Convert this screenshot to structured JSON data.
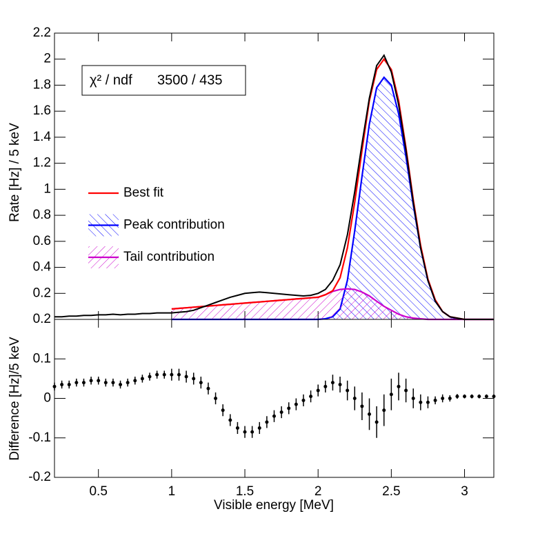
{
  "chart_data": [
    {
      "type": "line",
      "ylabel": "Rate [Hz] / 5 keV",
      "stats": {
        "label": "χ² / ndf",
        "value": "3500 / 435"
      },
      "xlim": [
        0.2,
        3.2
      ],
      "ylim": [
        0,
        2.2
      ],
      "yticks": [
        0.2,
        0.4,
        0.6,
        0.8,
        1,
        1.2,
        1.4,
        1.6,
        1.8,
        2,
        2.2
      ],
      "x": [
        0.2,
        0.25,
        0.3,
        0.35,
        0.4,
        0.45,
        0.5,
        0.55,
        0.6,
        0.65,
        0.7,
        0.75,
        0.8,
        0.85,
        0.9,
        0.95,
        1.0,
        1.05,
        1.1,
        1.15,
        1.2,
        1.25,
        1.3,
        1.35,
        1.4,
        1.45,
        1.5,
        1.55,
        1.6,
        1.65,
        1.7,
        1.75,
        1.8,
        1.85,
        1.9,
        1.95,
        2.0,
        2.05,
        2.1,
        2.15,
        2.2,
        2.25,
        2.3,
        2.35,
        2.4,
        2.45,
        2.5,
        2.55,
        2.6,
        2.65,
        2.7,
        2.75,
        2.8,
        2.85,
        2.9,
        2.95,
        3.0,
        3.05,
        3.1,
        3.15,
        3.2
      ],
      "series": [
        {
          "color": "#000000",
          "values": [
            0.02,
            0.02,
            0.025,
            0.025,
            0.03,
            0.03,
            0.035,
            0.035,
            0.04,
            0.035,
            0.04,
            0.04,
            0.045,
            0.045,
            0.05,
            0.05,
            0.05,
            0.055,
            0.06,
            0.07,
            0.09,
            0.11,
            0.13,
            0.15,
            0.17,
            0.185,
            0.2,
            0.205,
            0.21,
            0.205,
            0.2,
            0.195,
            0.19,
            0.185,
            0.18,
            0.185,
            0.2,
            0.23,
            0.3,
            0.42,
            0.65,
            0.98,
            1.35,
            1.7,
            1.95,
            2.03,
            1.9,
            1.65,
            1.3,
            0.9,
            0.55,
            0.3,
            0.14,
            0.06,
            0.02,
            0.01,
            0,
            0,
            0,
            0,
            0
          ]
        },
        {
          "name": "Best fit",
          "color": "#ff0000",
          "values": [
            null,
            null,
            null,
            null,
            null,
            null,
            null,
            null,
            null,
            null,
            null,
            null,
            null,
            null,
            null,
            null,
            0.08,
            0.085,
            0.089,
            0.094,
            0.098,
            0.103,
            0.107,
            0.112,
            0.116,
            0.121,
            0.125,
            0.13,
            0.134,
            0.139,
            0.143,
            0.148,
            0.152,
            0.157,
            0.161,
            0.166,
            0.17,
            0.19,
            0.22,
            0.32,
            0.55,
            0.9,
            1.3,
            1.68,
            1.92,
            2.0,
            1.92,
            1.68,
            1.32,
            0.92,
            0.57,
            0.31,
            0.15,
            0.06,
            0.02,
            0.01,
            0,
            0,
            0,
            0,
            0
          ]
        },
        {
          "name": "Peak contribution",
          "color": "#0000ff",
          "hatch": true,
          "values": [
            null,
            null,
            null,
            null,
            null,
            null,
            null,
            null,
            null,
            null,
            null,
            null,
            null,
            null,
            null,
            null,
            0,
            0,
            0,
            0,
            0,
            0,
            0,
            0,
            0,
            0,
            0,
            0,
            0,
            0,
            0,
            0,
            0,
            0,
            0,
            0,
            0,
            0.005,
            0.02,
            0.08,
            0.3,
            0.68,
            1.1,
            1.5,
            1.78,
            1.86,
            1.8,
            1.58,
            1.25,
            0.88,
            0.55,
            0.3,
            0.14,
            0.06,
            0.02,
            0.005,
            0,
            0,
            0,
            0,
            0
          ]
        },
        {
          "name": "Tail contribution",
          "color": "#cc00cc",
          "hatch": true,
          "values": [
            null,
            null,
            null,
            null,
            null,
            null,
            null,
            null,
            null,
            null,
            null,
            null,
            null,
            null,
            null,
            null,
            0.08,
            0.085,
            0.089,
            0.094,
            0.098,
            0.103,
            0.107,
            0.112,
            0.116,
            0.121,
            0.125,
            0.13,
            0.134,
            0.139,
            0.143,
            0.148,
            0.152,
            0.157,
            0.161,
            0.166,
            0.17,
            0.19,
            0.215,
            0.23,
            0.235,
            0.23,
            0.21,
            0.18,
            0.14,
            0.1,
            0.07,
            0.04,
            0.02,
            0.01,
            0.005,
            0,
            0,
            0,
            0,
            0,
            0,
            0,
            0,
            0,
            0
          ]
        }
      ]
    },
    {
      "type": "errorbar",
      "ylabel": "Difference [Hz]/5 keV",
      "xlabel": "Visible energy [MeV]",
      "xlim": [
        0.2,
        3.2
      ],
      "xticks": [
        0.5,
        1,
        1.5,
        2,
        2.5,
        3
      ],
      "ylim": [
        -0.2,
        0.2
      ],
      "yticks": [
        -0.2,
        -0.1,
        0,
        0.1,
        0.2
      ],
      "color": "#000000",
      "x": [
        0.2,
        0.25,
        0.3,
        0.35,
        0.4,
        0.45,
        0.5,
        0.55,
        0.6,
        0.65,
        0.7,
        0.75,
        0.8,
        0.85,
        0.9,
        0.95,
        1.0,
        1.05,
        1.1,
        1.15,
        1.2,
        1.25,
        1.3,
        1.35,
        1.4,
        1.45,
        1.5,
        1.55,
        1.6,
        1.65,
        1.7,
        1.75,
        1.8,
        1.85,
        1.9,
        1.95,
        2.0,
        2.05,
        2.1,
        2.15,
        2.2,
        2.25,
        2.3,
        2.35,
        2.4,
        2.45,
        2.5,
        2.55,
        2.6,
        2.65,
        2.7,
        2.75,
        2.8,
        2.85,
        2.9,
        2.95,
        3.0,
        3.05,
        3.1,
        3.15,
        3.2
      ],
      "values": [
        0.03,
        0.035,
        0.035,
        0.04,
        0.04,
        0.045,
        0.045,
        0.04,
        0.04,
        0.035,
        0.04,
        0.045,
        0.05,
        0.055,
        0.06,
        0.06,
        0.06,
        0.06,
        0.055,
        0.05,
        0.04,
        0.025,
        0.0,
        -0.03,
        -0.055,
        -0.075,
        -0.085,
        -0.085,
        -0.075,
        -0.06,
        -0.045,
        -0.035,
        -0.025,
        -0.015,
        -0.005,
        0.005,
        0.02,
        0.03,
        0.04,
        0.035,
        0.02,
        0.0,
        -0.02,
        -0.04,
        -0.06,
        -0.03,
        0.01,
        0.03,
        0.02,
        0.0,
        -0.01,
        -0.01,
        -0.005,
        0.0,
        0.0,
        0.005,
        0.005,
        0.005,
        0.005,
        0.005,
        0.005
      ],
      "errors": [
        0.01,
        0.01,
        0.01,
        0.01,
        0.01,
        0.01,
        0.01,
        0.01,
        0.01,
        0.01,
        0.01,
        0.01,
        0.01,
        0.01,
        0.01,
        0.01,
        0.015,
        0.015,
        0.015,
        0.015,
        0.015,
        0.015,
        0.015,
        0.015,
        0.015,
        0.015,
        0.015,
        0.015,
        0.015,
        0.015,
        0.015,
        0.015,
        0.015,
        0.015,
        0.015,
        0.015,
        0.015,
        0.015,
        0.02,
        0.02,
        0.025,
        0.03,
        0.035,
        0.04,
        0.04,
        0.04,
        0.04,
        0.035,
        0.03,
        0.025,
        0.02,
        0.015,
        0.01,
        0.01,
        0.008,
        0.006,
        0.005,
        0.005,
        0.005,
        0.005,
        0.005
      ]
    }
  ]
}
